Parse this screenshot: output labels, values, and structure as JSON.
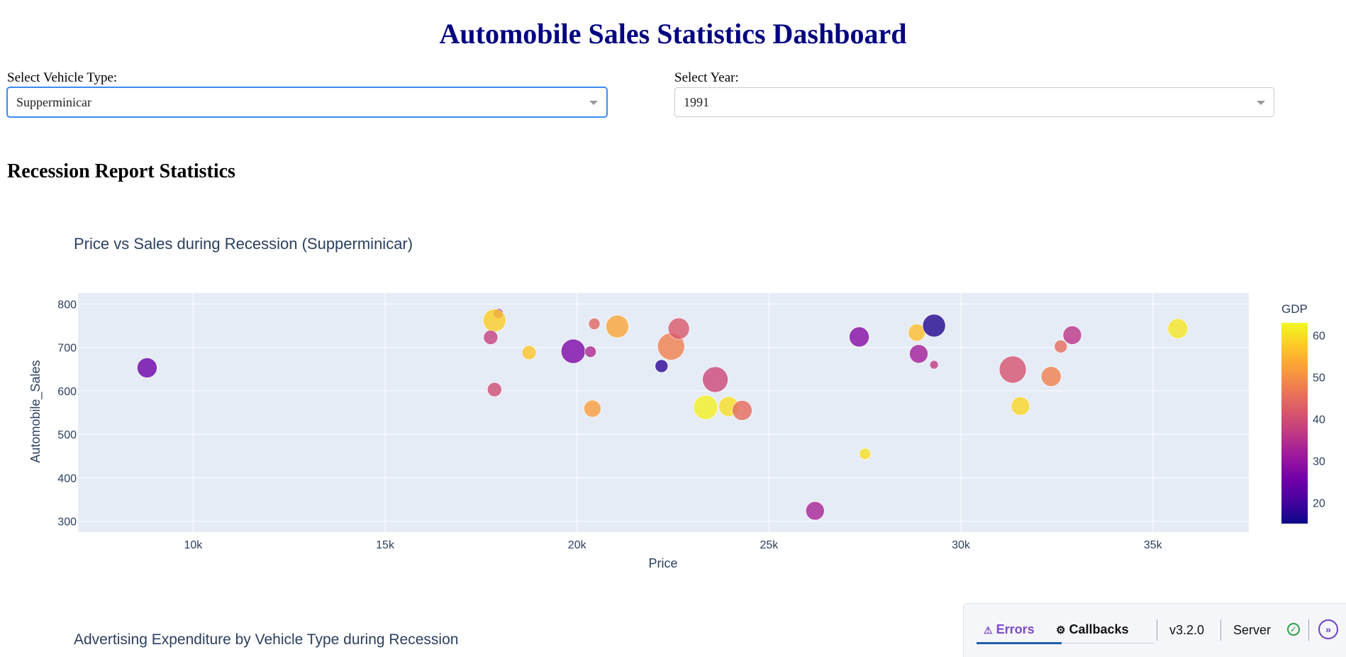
{
  "header": {
    "title": "Automobile Sales Statistics Dashboard"
  },
  "controls": {
    "vehicle": {
      "label": "Select Vehicle Type:",
      "value": "Supperminicar"
    },
    "year": {
      "label": "Select Year:",
      "value": "1991"
    }
  },
  "report": {
    "heading": "Recession Report Statistics"
  },
  "chart_data": [
    {
      "type": "scatter",
      "title": "Price vs Sales during Recession (Supperminicar)",
      "xlabel": "Price",
      "ylabel": "Automobile_Sales",
      "xlim": [
        7000,
        37500
      ],
      "ylim": [
        275,
        825
      ],
      "x_ticks": [
        10000,
        15000,
        20000,
        25000,
        30000,
        35000
      ],
      "x_tick_labels": [
        "10k",
        "15k",
        "20k",
        "25k",
        "30k",
        "35k"
      ],
      "y_ticks": [
        300,
        400,
        500,
        600,
        700,
        800
      ],
      "y_tick_labels": [
        "300",
        "400",
        "500",
        "600",
        "700",
        "800"
      ],
      "colorbar": {
        "title": "GDP",
        "range": [
          15,
          63
        ],
        "ticks": [
          20,
          30,
          40,
          50,
          60
        ],
        "colorscale": "plasma",
        "position": "right"
      },
      "marker_size_by": "unlabeled size variable (relative)",
      "grid": true,
      "points": [
        {
          "x": 8800,
          "y": 653,
          "gdp": 25,
          "size": 1.4
        },
        {
          "x": 17950,
          "y": 778,
          "gdp": 33,
          "size": 0.7
        },
        {
          "x": 17850,
          "y": 762,
          "gdp": 58,
          "size": 1.6
        },
        {
          "x": 17750,
          "y": 723,
          "gdp": 38,
          "size": 1.0
        },
        {
          "x": 17850,
          "y": 603,
          "gdp": 40,
          "size": 1.0
        },
        {
          "x": 18750,
          "y": 688,
          "gdp": 57,
          "size": 1.0
        },
        {
          "x": 19900,
          "y": 691,
          "gdp": 27,
          "size": 1.7
        },
        {
          "x": 20350,
          "y": 690,
          "gdp": 34,
          "size": 0.8
        },
        {
          "x": 20450,
          "y": 754,
          "gdp": 44,
          "size": 0.8
        },
        {
          "x": 20400,
          "y": 559,
          "gdp": 52,
          "size": 1.2
        },
        {
          "x": 21050,
          "y": 748,
          "gdp": 53,
          "size": 1.6
        },
        {
          "x": 22200,
          "y": 657,
          "gdp": 18,
          "size": 0.9
        },
        {
          "x": 22450,
          "y": 702,
          "gdp": 48,
          "size": 1.9
        },
        {
          "x": 22650,
          "y": 743,
          "gdp": 42,
          "size": 1.5
        },
        {
          "x": 23350,
          "y": 562,
          "gdp": 62,
          "size": 1.7
        },
        {
          "x": 23600,
          "y": 626,
          "gdp": 39,
          "size": 1.8
        },
        {
          "x": 23950,
          "y": 564,
          "gdp": 60,
          "size": 1.4
        },
        {
          "x": 24300,
          "y": 555,
          "gdp": 45,
          "size": 1.4
        },
        {
          "x": 26200,
          "y": 324,
          "gdp": 33,
          "size": 1.3
        },
        {
          "x": 27350,
          "y": 724,
          "gdp": 28,
          "size": 1.4
        },
        {
          "x": 27500,
          "y": 455,
          "gdp": 60,
          "size": 0.8
        },
        {
          "x": 28850,
          "y": 734,
          "gdp": 56,
          "size": 1.2
        },
        {
          "x": 28900,
          "y": 685,
          "gdp": 32,
          "size": 1.3
        },
        {
          "x": 29300,
          "y": 750,
          "gdp": 17,
          "size": 1.6
        },
        {
          "x": 29300,
          "y": 660,
          "gdp": 37,
          "size": 0.6
        },
        {
          "x": 31350,
          "y": 649,
          "gdp": 41,
          "size": 1.9
        },
        {
          "x": 31550,
          "y": 565,
          "gdp": 59,
          "size": 1.3
        },
        {
          "x": 32350,
          "y": 633,
          "gdp": 48,
          "size": 1.4
        },
        {
          "x": 32600,
          "y": 702,
          "gdp": 45,
          "size": 0.9
        },
        {
          "x": 32900,
          "y": 728,
          "gdp": 36,
          "size": 1.3
        },
        {
          "x": 35650,
          "y": 743,
          "gdp": 61,
          "size": 1.4
        }
      ]
    },
    {
      "type": "bar",
      "title": "Advertising Expenditure by Vehicle Type during Recession"
    }
  ],
  "devtools": {
    "errors_label": "Errors",
    "callbacks_label": "Callbacks",
    "version": "v3.2.0",
    "server_label": "Server"
  }
}
